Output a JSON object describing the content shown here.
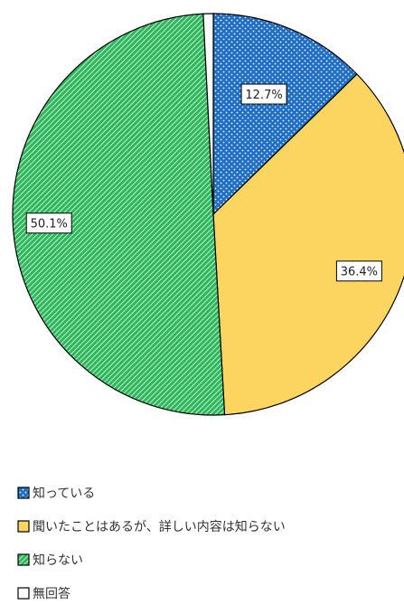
{
  "chart_data": {
    "type": "pie",
    "slices": [
      {
        "name": "知っている",
        "value": 12.7,
        "label": "12.7%",
        "color": "#1f6fc5",
        "pattern": "dots"
      },
      {
        "name": "聞いたことはあるが、詳しい内容は知らない",
        "value": 36.4,
        "label": "36.4%",
        "color": "#ffd966",
        "pattern": "fine-dots"
      },
      {
        "name": "知らない",
        "value": 50.1,
        "label": "50.1%",
        "color": "#2eb85c",
        "pattern": "diagonal"
      },
      {
        "name": "無回答",
        "value": 0.8,
        "label": "",
        "color": "#ffffff",
        "pattern": "none"
      }
    ],
    "start_angle": "12 o'clock",
    "direction": "clockwise",
    "legend_position": "bottom-left",
    "border_color": "#000000"
  }
}
